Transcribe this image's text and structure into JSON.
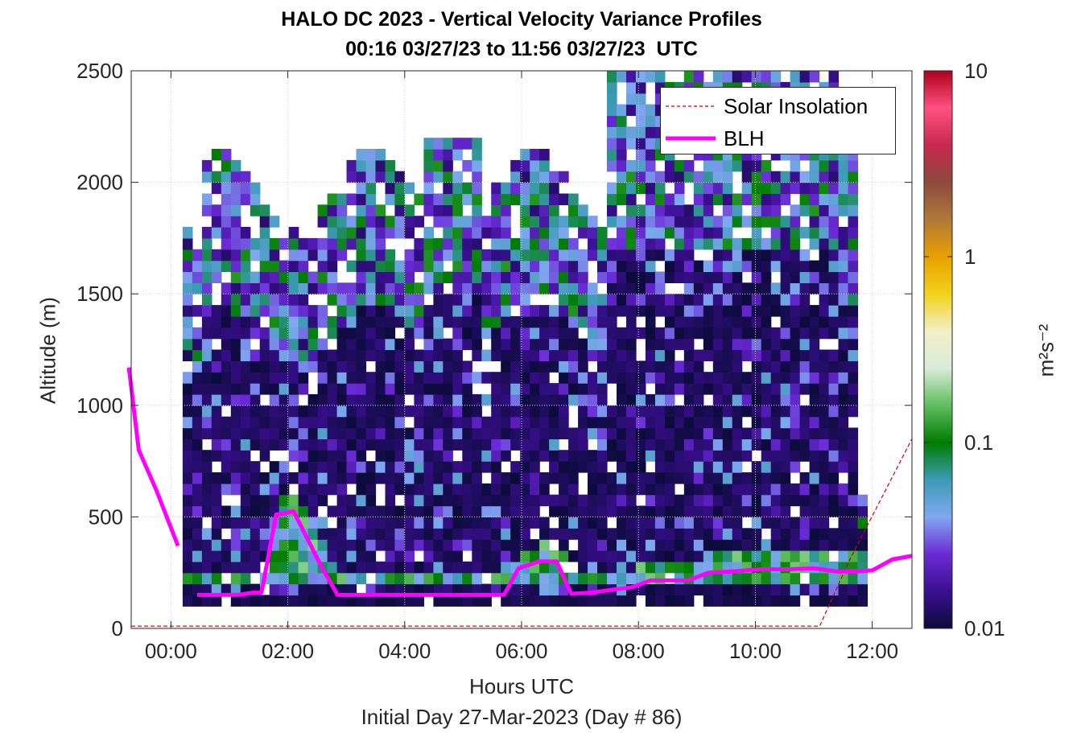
{
  "figure": {
    "title_line1": "HALO DC 2023 - Vertical Velocity Variance Profiles",
    "title_line2": "00:16 03/27/23 to 11:56 03/27/23  UTC",
    "xlabel": "Hours UTC",
    "xlabel2": "Initial Day 27-Mar-2023 (Day # 86)",
    "ylabel": "Altitude (m)",
    "colorbar_label": "m²s⁻²"
  },
  "legend": {
    "solar_label": "Solar Insolation",
    "blh_label": "BLH"
  },
  "colors": {
    "blh": "#ff00ff",
    "solar": "#cc0000",
    "background_cell": "#0b0b3b"
  },
  "chart_data": {
    "type": "heatmap",
    "x_ticks": [
      "00:00",
      "02:00",
      "04:00",
      "06:00",
      "08:00",
      "10:00",
      "12:00"
    ],
    "x_tick_hours": [
      0,
      2,
      4,
      6,
      8,
      10,
      12
    ],
    "xlim_hours": [
      -0.68,
      12.68
    ],
    "y_ticks": [
      0,
      500,
      1000,
      1500,
      2000,
      2500
    ],
    "ylim": [
      0,
      2500
    ],
    "colorbar": {
      "scale": "log",
      "range": [
        0.01,
        10
      ],
      "ticks": [
        0.01,
        0.1,
        1,
        10
      ],
      "tick_labels": [
        "0.01",
        "0.1",
        "1",
        "10"
      ],
      "colormap_stops": [
        "#0b0b3b",
        "#3a0f8f",
        "#6a2bd6",
        "#7fa8f0",
        "#3c9ab4",
        "#007c00",
        "#5fbe5f",
        "#d8ecd8",
        "#f2efc8",
        "#f1d21a",
        "#e8a000",
        "#b07838",
        "#8c4a3e",
        "#c8284e",
        "#ff5080",
        "#b0001a"
      ]
    },
    "heatmap_x_range_hours": [
      0.2,
      11.9
    ],
    "heatmap_base_altitude": 100,
    "series": [
      {
        "name": "BLH",
        "segment1": {
          "x": [
            -0.72,
            -0.55,
            -0.25,
            0.12
          ],
          "y": [
            1170,
            800,
            620,
            370
          ]
        },
        "segment2": {
          "x": [
            0.45,
            1.15,
            1.4,
            1.55,
            1.8,
            2.1,
            2.3,
            2.55,
            2.85,
            3.3,
            4.0,
            4.6,
            5.1,
            5.5,
            5.7,
            5.95,
            6.3,
            6.6,
            6.85,
            7.2,
            7.6,
            7.9,
            8.2,
            8.5,
            8.85,
            9.2,
            9.6,
            10.1,
            10.6,
            11.0,
            11.4,
            11.7,
            12.0,
            12.35,
            12.68
          ],
          "y": [
            150,
            150,
            160,
            160,
            510,
            525,
            420,
            290,
            150,
            150,
            150,
            150,
            150,
            150,
            150,
            270,
            300,
            300,
            155,
            160,
            175,
            185,
            215,
            215,
            215,
            250,
            255,
            265,
            265,
            270,
            255,
            255,
            260,
            310,
            325
          ]
        }
      },
      {
        "name": "Solar Insolation",
        "x": [
          -0.68,
          11.1,
          11.6,
          12.68
        ],
        "y": [
          10,
          10,
          300,
          850
        ]
      }
    ]
  }
}
